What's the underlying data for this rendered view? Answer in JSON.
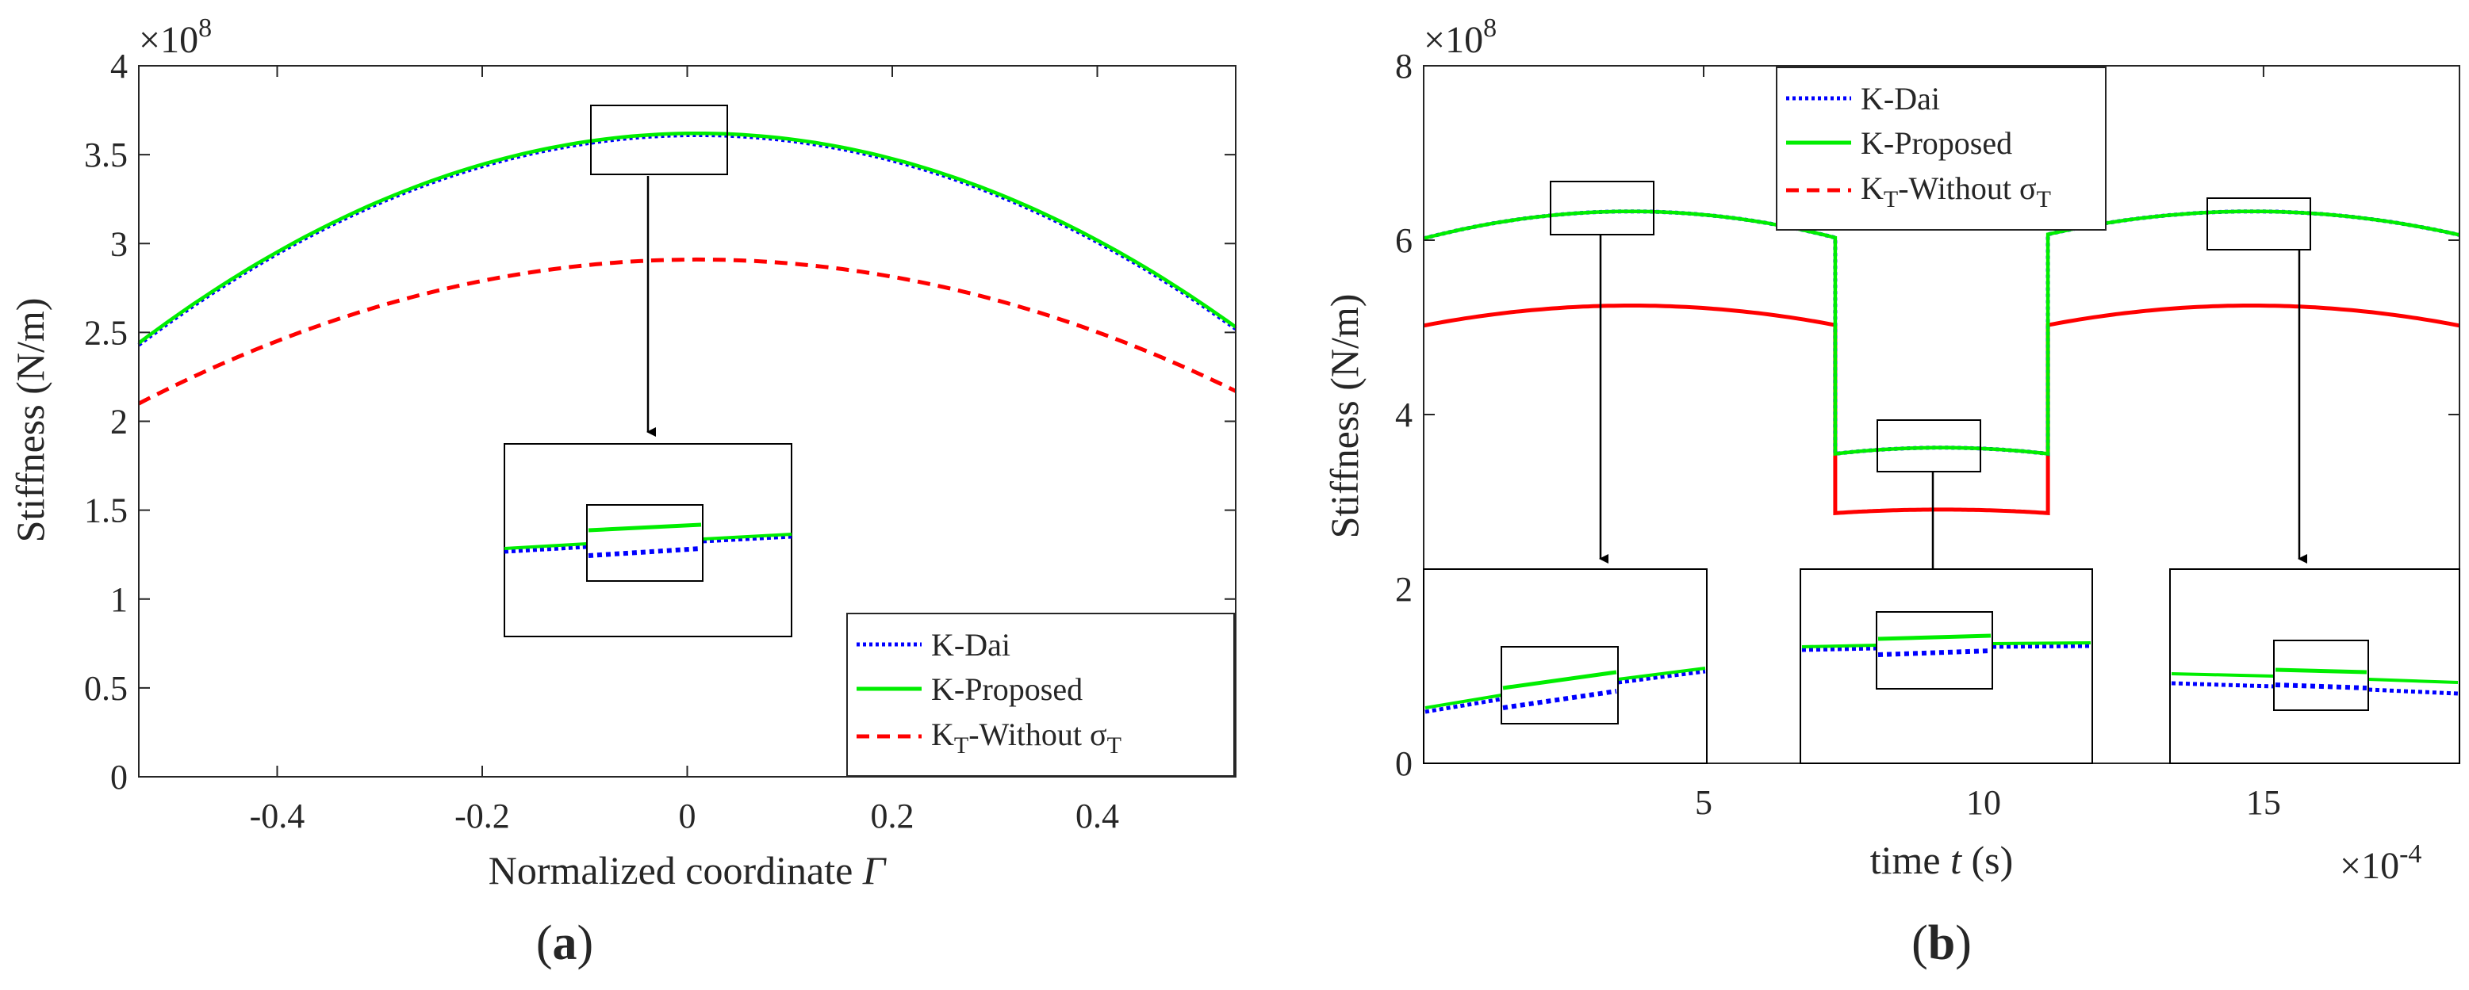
{
  "colors": {
    "dai": "#0000ff",
    "proposed": "#00ee00",
    "without": "#ff0000",
    "axis": "#262626"
  },
  "legend": {
    "dai": "K-Dai",
    "proposed": "K-Proposed",
    "without_main": "K",
    "without_sub": "T",
    "without_mid": "-Without σ",
    "without_sub2": "T"
  },
  "chart_data": [
    {
      "panel": "(a)",
      "panel_letter": "a",
      "type": "line",
      "xlabel_text": "Normalized coordinate ",
      "xlabel_symbol": "Γ",
      "ylabel": "Stiffness   (N/m)",
      "y_exponent_label": "×10",
      "y_exponent_power": "8",
      "xlim": [
        -0.535,
        0.535
      ],
      "ylim": [
        0,
        4
      ],
      "xticks": [
        "-0.4",
        "-0.2",
        "0",
        "0.2",
        "0.4"
      ],
      "xtick_values": [
        -0.4,
        -0.2,
        0,
        0.2,
        0.4
      ],
      "yticks": [
        "0",
        "0.5",
        "1",
        "1.5",
        "2",
        "2.5",
        "3",
        "3.5",
        "4"
      ],
      "ytick_values": [
        0,
        0.5,
        1,
        1.5,
        2,
        2.5,
        3,
        3.5,
        4
      ],
      "legend_position": "bottom-right",
      "series": [
        {
          "key": "dai",
          "style": "dotted",
          "peak": 3.61,
          "edge_left": 2.43,
          "edge_right": 2.52,
          "peak_x": 0.01
        },
        {
          "key": "proposed",
          "style": "solid",
          "peak": 3.62,
          "edge_left": 2.44,
          "edge_right": 2.53,
          "peak_x": 0.01
        },
        {
          "key": "without",
          "style": "dashed",
          "peak": 2.91,
          "edge_left": 2.1,
          "edge_right": 2.17,
          "peak_x": 0.01
        }
      ]
    },
    {
      "panel": "(b)",
      "panel_letter": "b",
      "type": "line",
      "xlabel_text": "time ",
      "xlabel_symbol": "t",
      "xlabel_unit": " (s)",
      "x_exponent_label": "×10",
      "x_exponent_power": "-4",
      "ylabel": "Stiffness   (N/m)",
      "y_exponent_label": "×10",
      "y_exponent_power": "8",
      "xlim": [
        0,
        18.5
      ],
      "ylim": [
        0,
        8
      ],
      "xticks": [
        "5",
        "10",
        "15"
      ],
      "xtick_values": [
        5,
        10,
        15
      ],
      "yticks": [
        "0",
        "2",
        "4",
        "6",
        "8"
      ],
      "ytick_values": [
        0,
        2,
        4,
        6,
        8
      ],
      "legend_position": "top-center",
      "segments": [
        {
          "x_start": 0,
          "x_end": 7.35,
          "peak_x": 3.7,
          "proposed_peak": 6.33,
          "proposed_edge": 6.02,
          "without_peak": 5.25,
          "without_edge": 5.02
        },
        {
          "x_start": 7.35,
          "x_end": 11.15,
          "peak_x": 9.25,
          "proposed_peak": 3.62,
          "proposed_edge": 3.55,
          "without_peak": 2.91,
          "without_edge": 2.87
        },
        {
          "x_start": 11.15,
          "x_end": 18.5,
          "peak_x": 14.8,
          "proposed_peak": 6.33,
          "proposed_edge": 6.06,
          "without_peak": 5.25,
          "without_edge": 5.02
        }
      ]
    }
  ]
}
